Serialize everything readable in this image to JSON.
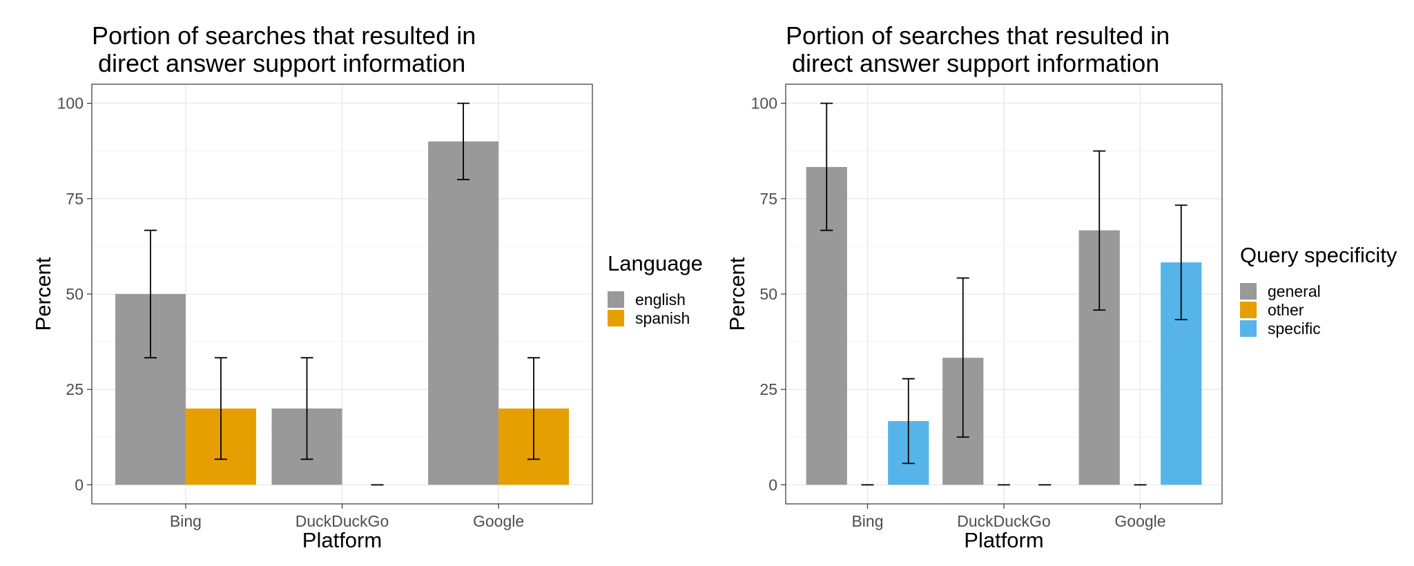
{
  "chart_data": [
    {
      "type": "bar",
      "title": "Portion of searches that resulted in\ndirect answer support information",
      "xlabel": "Platform",
      "ylabel": "Percent",
      "categories": [
        "Bing",
        "DuckDuckGo",
        "Google"
      ],
      "ylim": [
        -5,
        105
      ],
      "yticks": [
        0,
        25,
        50,
        75,
        100
      ],
      "grid": true,
      "legend": {
        "title": "Language",
        "position": "right"
      },
      "series": [
        {
          "name": "english",
          "color": "#999999",
          "values": [
            50,
            20,
            90
          ],
          "lower": [
            33.3,
            6.7,
            80
          ],
          "upper": [
            66.7,
            33.3,
            100
          ]
        },
        {
          "name": "spanish",
          "color": "#E69F00",
          "values": [
            20,
            0,
            20
          ],
          "lower": [
            6.7,
            0,
            6.7
          ],
          "upper": [
            33.3,
            0,
            33.3
          ]
        }
      ]
    },
    {
      "type": "bar",
      "title": "Portion of searches that resulted in\ndirect answer support information",
      "xlabel": "Platform",
      "ylabel": "Percent",
      "categories": [
        "Bing",
        "DuckDuckGo",
        "Google"
      ],
      "ylim": [
        -5,
        105
      ],
      "yticks": [
        0,
        25,
        50,
        75,
        100
      ],
      "grid": true,
      "legend": {
        "title": "Query specificity",
        "position": "right"
      },
      "series": [
        {
          "name": "general",
          "color": "#999999",
          "values": [
            83.3,
            33.3,
            66.7
          ],
          "lower": [
            66.7,
            12.5,
            45.8
          ],
          "upper": [
            100,
            54.2,
            87.5
          ]
        },
        {
          "name": "other",
          "color": "#E69F00",
          "values": [
            0,
            0,
            0
          ],
          "lower": [
            0,
            0,
            0
          ],
          "upper": [
            0,
            0,
            0
          ]
        },
        {
          "name": "specific",
          "color": "#56B4E9",
          "values": [
            16.7,
            0,
            58.3
          ],
          "lower": [
            5.6,
            0,
            43.3
          ],
          "upper": [
            27.8,
            0,
            73.3
          ]
        }
      ]
    }
  ]
}
